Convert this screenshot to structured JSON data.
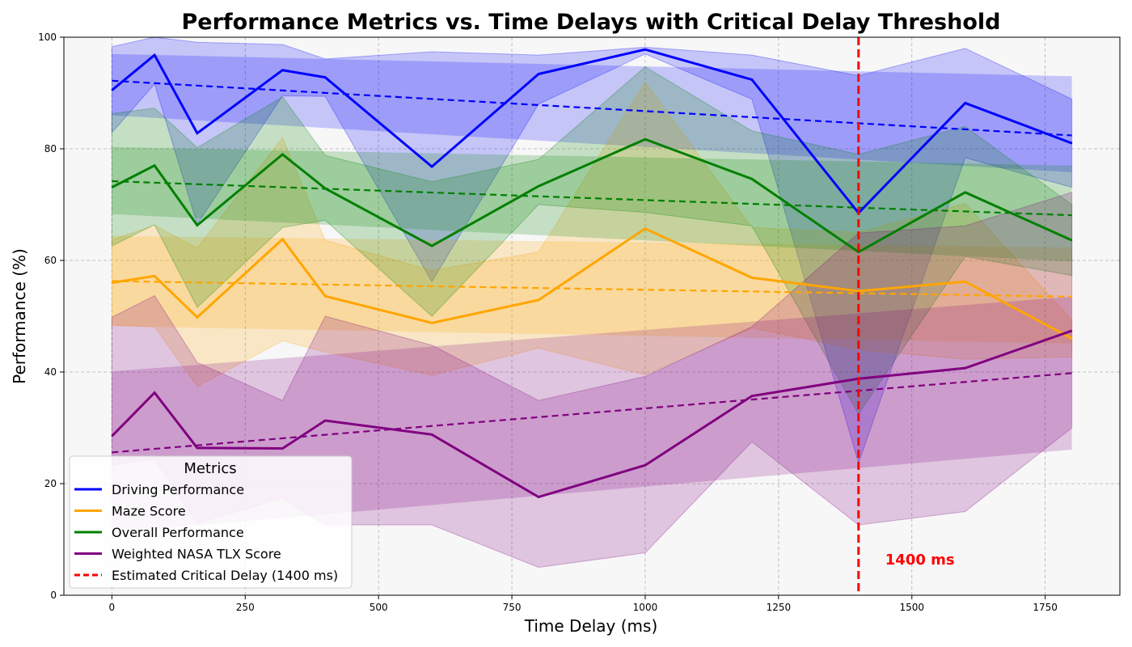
{
  "chart_data": {
    "type": "line",
    "title": "Performance Metrics vs. Time Delays with Critical Delay Threshold",
    "xlabel": "Time Delay (ms)",
    "ylabel": "Performance (%)",
    "xlim": [
      -90,
      1890
    ],
    "ylim": [
      0,
      100
    ],
    "xticks": [
      0,
      250,
      500,
      750,
      1000,
      1250,
      1500,
      1750
    ],
    "yticks": [
      0,
      20,
      40,
      60,
      80,
      100
    ],
    "grid": true,
    "legend_placement": "lower-left",
    "legend_title": "Metrics",
    "x": [
      0,
      80,
      160,
      320,
      400,
      600,
      800,
      1000,
      1200,
      1400,
      1600,
      1800
    ],
    "series": [
      {
        "name": "Driving Performance",
        "color": "#0000ff",
        "values": [
          90.5,
          96.8,
          82.8,
          94.1,
          92.8,
          76.8,
          93.4,
          97.8,
          92.4,
          68.5,
          88.2,
          81.0
        ],
        "band_upper": [
          98.3,
          100.0,
          99.1,
          98.7,
          96.1,
          97.4,
          96.8,
          98.2,
          96.8,
          93.1,
          98.0,
          88.9
        ],
        "band_lower": [
          82.9,
          91.6,
          66.5,
          89.5,
          89.4,
          56.2,
          88.0,
          97.0,
          88.9,
          23.7,
          78.4,
          73.1
        ],
        "trend": [
          92.2,
          82.4
        ],
        "trend_band_upper": [
          97.0,
          93.0
        ],
        "trend_band_lower": [
          86.0,
          75.8
        ]
      },
      {
        "name": "Maze Score",
        "color": "#ffa500",
        "values": [
          56.0,
          57.2,
          49.8,
          63.8,
          53.6,
          48.8,
          52.9,
          65.7,
          56.9,
          54.5,
          56.2,
          46.0
        ],
        "band_upper": [
          63.7,
          66.3,
          62.2,
          82.0,
          63.6,
          58.2,
          61.5,
          91.9,
          65.9,
          65.0,
          70.2,
          49.3
        ],
        "band_lower": [
          48.4,
          48.1,
          37.4,
          45.6,
          43.6,
          39.4,
          44.3,
          39.5,
          47.9,
          44.0,
          42.3,
          42.7
        ],
        "trend": [
          56.3,
          53.5
        ],
        "trend_band_upper": [
          64.4,
          62.3
        ],
        "trend_band_lower": [
          48.2,
          45.1
        ]
      },
      {
        "name": "Overall Performance",
        "color": "#008000",
        "values": [
          73.1,
          77.0,
          66.3,
          79.0,
          72.9,
          62.6,
          73.3,
          81.7,
          74.6,
          61.5,
          72.2,
          63.6
        ],
        "band_upper": [
          86.3,
          87.3,
          80.2,
          89.3,
          78.8,
          74.1,
          78.1,
          94.7,
          83.2,
          79.0,
          84.0,
          70.0
        ],
        "band_lower": [
          62.6,
          66.4,
          51.6,
          65.9,
          67.2,
          50.0,
          70.0,
          68.6,
          66.2,
          32.5,
          60.7,
          57.3
        ],
        "trend": [
          74.2,
          68.1
        ],
        "trend_band_upper": [
          80.3,
          77.0
        ],
        "trend_band_lower": [
          68.3,
          59.8
        ]
      },
      {
        "name": "Weighted NASA TLX Score",
        "color": "#800080",
        "values": [
          28.5,
          36.3,
          26.4,
          26.3,
          31.3,
          28.8,
          17.6,
          23.3,
          35.7,
          38.8,
          40.7,
          47.4
        ],
        "band_upper": [
          49.8,
          53.7,
          41.7,
          34.9,
          50.0,
          44.8,
          34.9,
          39.2,
          48.1,
          64.9,
          66.2,
          72.2
        ],
        "band_lower": [
          23.3,
          24.5,
          12.9,
          17.4,
          12.6,
          12.6,
          5.0,
          7.6,
          27.5,
          12.6,
          15.0,
          30.0
        ],
        "trend": [
          25.6,
          39.8
        ],
        "trend_band_upper": [
          40.1,
          53.5
        ],
        "trend_band_lower": [
          11.2,
          26.1
        ]
      }
    ],
    "critical_delay": {
      "name": "Estimated Critical Delay (1400 ms)",
      "x": 1400,
      "color": "#ff0000",
      "label": "1400 ms",
      "label_x": 1450,
      "label_y": 5.5
    }
  }
}
